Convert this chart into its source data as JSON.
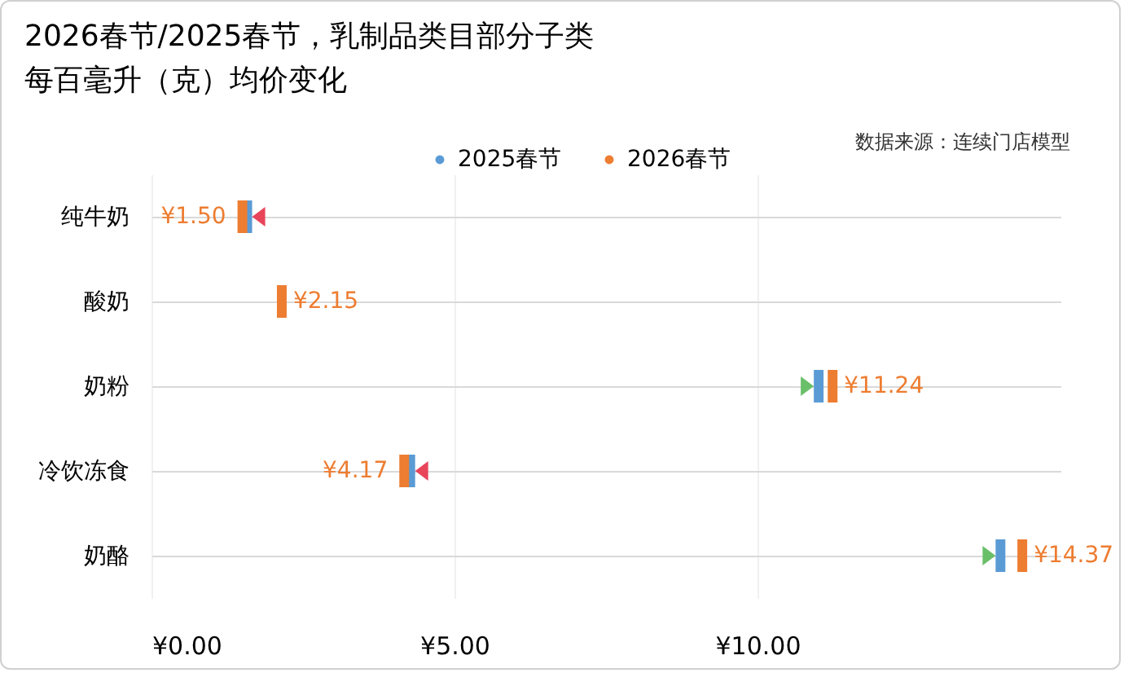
{
  "chart_data": {
    "type": "scatter",
    "orientation": "horizontal",
    "title": "2026春节/2025春节，乳制品类目部分子类每百毫升（克）均价变化",
    "annotations": [
      "数据来源：连续门店模型"
    ],
    "categories": [
      "纯牛奶",
      "酸奶",
      "奶粉",
      "冷饮冻食",
      "奶酪"
    ],
    "series": [
      {
        "name": "2025春节",
        "color": "#5b9bd5",
        "values": [
          1.58,
          null,
          11.01,
          4.27,
          14.01
        ]
      },
      {
        "name": "2026春节",
        "color": "#ed7d31",
        "values": [
          1.5,
          2.15,
          11.24,
          4.17,
          14.37
        ],
        "value_labels": [
          "¥1.50",
          "¥2.15",
          "¥11.24",
          "¥4.17",
          "¥14.37"
        ]
      }
    ],
    "xlim": [
      0,
      15
    ],
    "xticks": [
      {
        "value": 0,
        "label": "¥0.00"
      },
      {
        "value": 5,
        "label": "¥5.00"
      },
      {
        "value": 10,
        "label": "¥10.00"
      }
    ],
    "grid": true,
    "legend": "top",
    "marker": "square"
  }
}
